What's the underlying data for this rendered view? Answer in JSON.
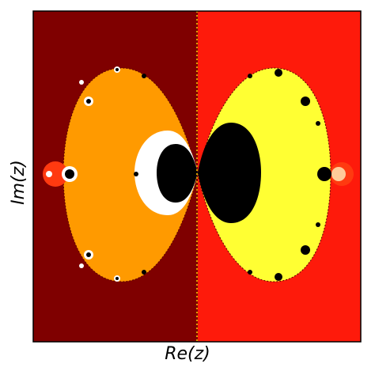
{
  "labels": {
    "xlabel": "Re(z)",
    "ylabel": "Im(z)"
  },
  "colors": {
    "left_background": "#7f0000",
    "right_background": "#fe1a0b",
    "left_bulb": "#ff9a00",
    "right_bulb": "#ffff33",
    "inner_white": "#ffffff",
    "inner_black": "#000000",
    "frame": "#000000"
  }
}
